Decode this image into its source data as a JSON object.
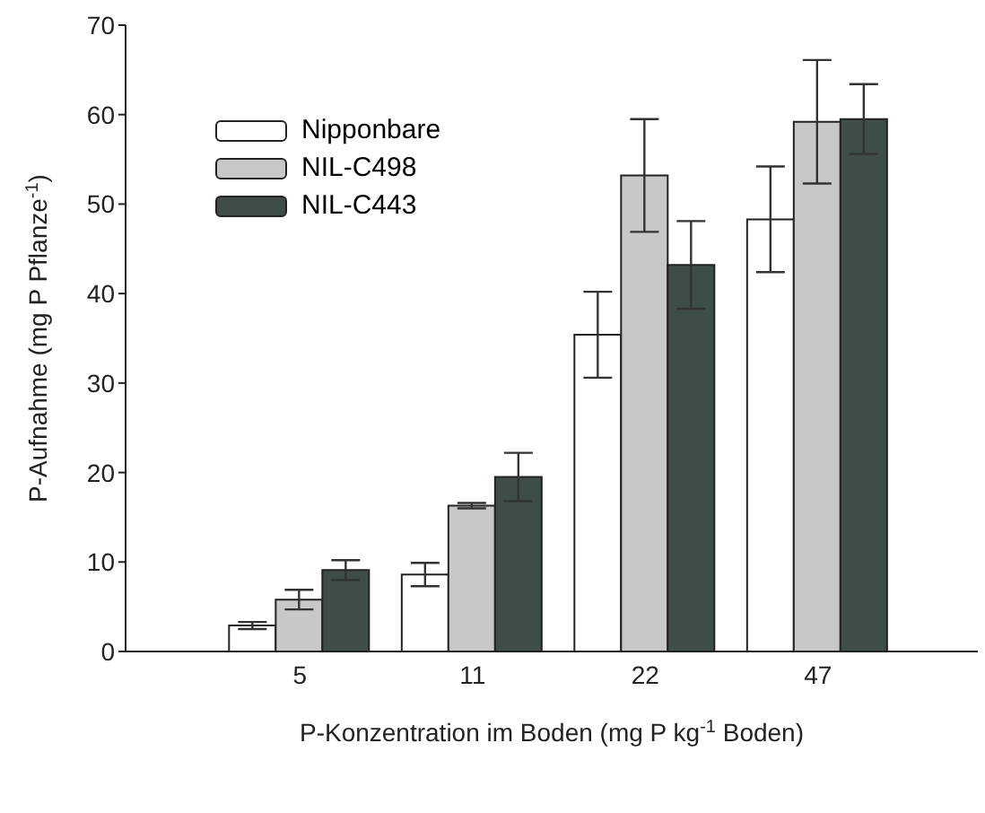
{
  "chart_data": {
    "type": "bar",
    "xlabel": "P-Konzentration im Boden (mg P kg$^{-1}$ Boden)",
    "ylabel": "P-Aufnahme (mg P Pflanze$^{-1}$)",
    "categories": [
      "5",
      "11",
      "22",
      "47"
    ],
    "series": [
      {
        "name": "Nipponbare",
        "color": "#ffffff",
        "values": [
          2.9,
          8.6,
          35.4,
          48.3
        ],
        "errors": [
          0.4,
          1.3,
          4.8,
          5.9
        ]
      },
      {
        "name": "NIL-C498",
        "color": "#c8c8c8",
        "values": [
          5.8,
          16.3,
          53.2,
          59.2
        ],
        "errors": [
          1.1,
          0.3,
          6.3,
          6.9
        ]
      },
      {
        "name": "NIL-C443",
        "color": "#3e4c4a",
        "values": [
          9.1,
          19.5,
          43.2,
          59.5
        ],
        "errors": [
          1.1,
          2.7,
          4.9,
          3.9
        ]
      }
    ],
    "ylim": [
      0,
      70
    ],
    "yticks": [
      0,
      10,
      20,
      30,
      40,
      50,
      60,
      70
    ],
    "grid": false,
    "legend": "top left"
  }
}
